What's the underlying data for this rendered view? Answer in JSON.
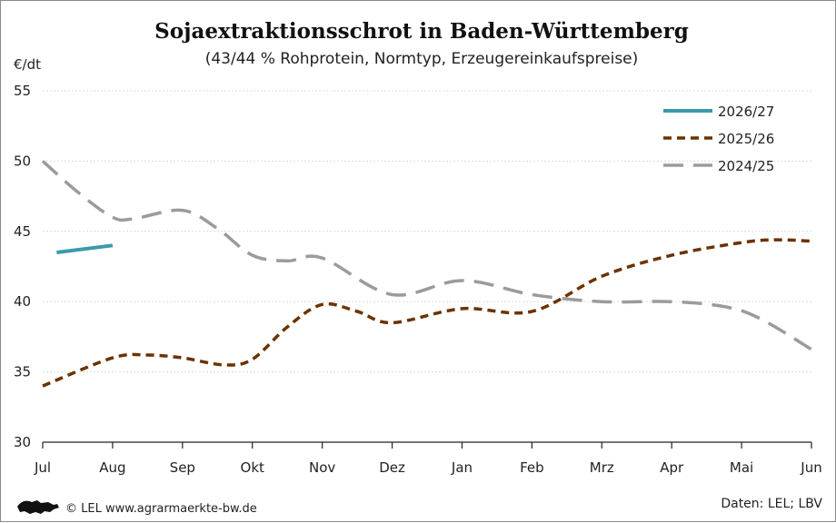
{
  "chart_data": {
    "type": "line",
    "title": "Sojaextraktionsschrot in Baden-Württemberg",
    "subtitle": "(43/44 % Rohprotein, Normtyp, Erzeugereinkaufspreise)",
    "ylabel": "€/dt",
    "ylim": [
      30,
      55
    ],
    "yticks": [
      30,
      35,
      40,
      45,
      50,
      55
    ],
    "categories": [
      "Jul",
      "Aug",
      "Sep",
      "Okt",
      "Nov",
      "Dez",
      "Jan",
      "Feb",
      "Mrz",
      "Apr",
      "Mai",
      "Jun"
    ],
    "grid": true,
    "legend_position": "top-right",
    "series": [
      {
        "name": "2026/27",
        "color": "#3a9aab",
        "style": "solid",
        "points": [
          [
            0.2,
            43.5
          ],
          [
            1,
            44.0
          ]
        ]
      },
      {
        "name": "2025/26",
        "color": "#6b3200",
        "style": "dotted",
        "points": [
          [
            0,
            34.0
          ],
          [
            1,
            36.0
          ],
          [
            1.5,
            36.2
          ],
          [
            2,
            36.0
          ],
          [
            2.6,
            35.5
          ],
          [
            3,
            35.9
          ],
          [
            3.5,
            38.2
          ],
          [
            4,
            39.8
          ],
          [
            4.5,
            39.3
          ],
          [
            5,
            38.5
          ],
          [
            6,
            39.5
          ],
          [
            7,
            39.3
          ],
          [
            8,
            41.8
          ],
          [
            9,
            43.3
          ],
          [
            10,
            44.2
          ],
          [
            10.5,
            44.4
          ],
          [
            11,
            44.3
          ]
        ]
      },
      {
        "name": "2024/25",
        "color": "#9b9b9b",
        "style": "dashed",
        "points": [
          [
            0,
            50.0
          ],
          [
            0.5,
            47.8
          ],
          [
            1,
            46.0
          ],
          [
            1.3,
            45.9
          ],
          [
            2,
            46.5
          ],
          [
            2.5,
            45.2
          ],
          [
            3,
            43.3
          ],
          [
            3.5,
            42.9
          ],
          [
            4,
            43.1
          ],
          [
            5,
            40.5
          ],
          [
            6,
            41.5
          ],
          [
            7,
            40.5
          ],
          [
            8,
            40.0
          ],
          [
            9,
            40.0
          ],
          [
            9.8,
            39.6
          ],
          [
            10.3,
            38.7
          ],
          [
            11,
            36.6
          ]
        ]
      }
    ]
  },
  "footer": {
    "logo_icon": "lion-logo-icon",
    "copyright": "© LEL www.agrarmaerkte-bw.de",
    "source": "Daten: LEL; LBV"
  }
}
